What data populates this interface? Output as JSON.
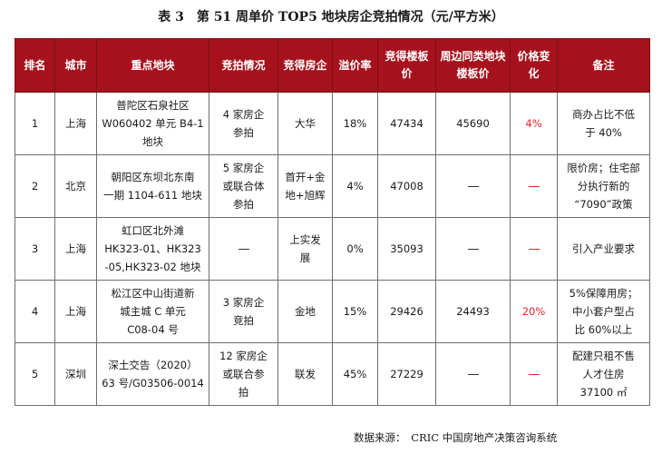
{
  "title": "表 3　第 51 周单价 TOP5 地块房企竞拍情况（元/平方米）",
  "headers": {
    "rank": [
      "排名"
    ],
    "city": [
      "城市"
    ],
    "plot": [
      "重点地块"
    ],
    "auction": [
      "竞拍情况"
    ],
    "winner": [
      "竞得",
      "房企"
    ],
    "premium": [
      "溢价",
      "率"
    ],
    "price": [
      "竞得楼",
      "板价"
    ],
    "nearby": [
      "周边同类地",
      "块楼板价"
    ],
    "change": [
      "价格",
      "变化"
    ],
    "note": [
      "备注"
    ]
  },
  "rows": [
    {
      "rank": "1",
      "city": "上海",
      "plot": [
        "普陀区石泉社区",
        "W060402 单元 B4-1",
        "地块"
      ],
      "auction": [
        "4 家房企",
        "参拍"
      ],
      "winner": [
        "大华"
      ],
      "premium": "18%",
      "price": "47434",
      "nearby": "45690",
      "change": "4%",
      "note": [
        "商办占比不低",
        "于 40%"
      ]
    },
    {
      "rank": "2",
      "city": "北京",
      "plot": [
        "朝阳区东坝北东南",
        "一期 1104-611 地块"
      ],
      "auction": [
        "5 家房企",
        "或联合体",
        "参拍"
      ],
      "winner": [
        "首开+金",
        "地+旭辉"
      ],
      "premium": "4%",
      "price": "47008",
      "nearby": "—",
      "change": "—",
      "note": [
        "限价房；住宅部",
        "分执行新的",
        "“7090”政策"
      ]
    },
    {
      "rank": "3",
      "city": "上海",
      "plot": [
        "虹口区北外滩",
        "HK323-01、HK323",
        "-05,HK323-02 地块"
      ],
      "auction": [
        "—"
      ],
      "winner": [
        "上实发",
        "展"
      ],
      "premium": "0%",
      "price": "35093",
      "nearby": "—",
      "change": "—",
      "note": [
        "引入产业要求"
      ]
    },
    {
      "rank": "4",
      "city": "上海",
      "plot": [
        "松江区中山街道新",
        "城主城 C 单元",
        "C08-04 号"
      ],
      "auction": [
        "3 家房企",
        "竞拍"
      ],
      "winner": [
        "金地"
      ],
      "premium": "15%",
      "price": "29426",
      "nearby": "24493",
      "change": "20%",
      "note": [
        "5%保障用房；",
        "中小套户型占",
        "比 60%以上"
      ]
    },
    {
      "rank": "5",
      "city": "深圳",
      "plot": [
        "深土交告（2020）",
        "63 号/G03506-0014"
      ],
      "auction": [
        "12 家房企",
        "或联合参",
        "拍"
      ],
      "winner": [
        "联发"
      ],
      "premium": "45%",
      "price": "27229",
      "nearby": "—",
      "change": "—",
      "note": [
        "配建只租不售",
        "人才住房",
        "37100 ㎡"
      ]
    }
  ],
  "source": "数据来源：　CRIC 中国房地产决策咨询系统",
  "colors": {
    "header_bg": "#a5121d",
    "header_text": "#ffffff",
    "highlight": "#e0242b"
  }
}
